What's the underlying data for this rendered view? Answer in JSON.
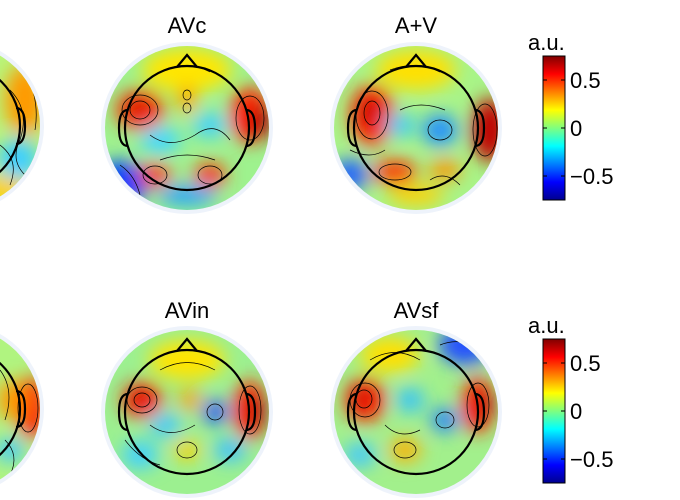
{
  "chart_data": {
    "type": "heatmap",
    "colormap": "jet",
    "maps": [
      {
        "id": "top-left-partial",
        "title": ""
      },
      {
        "id": "avc",
        "title": "AVc"
      },
      {
        "id": "a-plus-v",
        "title": "A+V"
      },
      {
        "id": "bottom-left-partial",
        "title": ""
      },
      {
        "id": "avin",
        "title": "AVin"
      },
      {
        "id": "avsf",
        "title": "AVsf"
      }
    ],
    "colorbars": [
      {
        "unit_label": "a.u.",
        "ticks": [
          "0.5",
          "0",
          "−0.5"
        ],
        "tick_values": [
          0.5,
          0,
          -0.5
        ],
        "range": [
          -0.75,
          0.75
        ]
      },
      {
        "unit_label": "a.u.",
        "ticks": [
          "0.5",
          "0",
          "−0.5"
        ],
        "tick_values": [
          0.5,
          0,
          -0.5
        ],
        "range": [
          -0.75,
          0.75
        ]
      }
    ]
  }
}
